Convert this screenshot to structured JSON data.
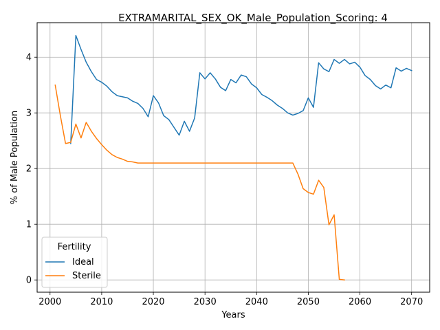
{
  "chart_data": {
    "type": "line",
    "title": "EXTRAMARITAL_SEX_OK_Male_Population_Scoring: 4",
    "xlabel": "Years",
    "ylabel": "% of Male Population",
    "xlim": [
      1997.5,
      2073.5
    ],
    "ylim": [
      -0.22,
      4.62
    ],
    "xticks": [
      2000,
      2010,
      2020,
      2030,
      2040,
      2050,
      2060,
      2070
    ],
    "yticks": [
      0,
      1,
      2,
      3,
      4
    ],
    "grid": true,
    "legend": {
      "title": "Fertility",
      "placement": "lower-left"
    },
    "series": [
      {
        "name": "Ideal",
        "color": "#1f77b4",
        "points": [
          [
            2004,
            2.45
          ],
          [
            2005,
            4.39
          ],
          [
            2006,
            4.14
          ],
          [
            2007,
            3.91
          ],
          [
            2008,
            3.74
          ],
          [
            2009,
            3.6
          ],
          [
            2010,
            3.55
          ],
          [
            2011,
            3.48
          ],
          [
            2012,
            3.38
          ],
          [
            2013,
            3.31
          ],
          [
            2014,
            3.29
          ],
          [
            2015,
            3.27
          ],
          [
            2016,
            3.21
          ],
          [
            2017,
            3.17
          ],
          [
            2018,
            3.08
          ],
          [
            2019,
            2.93
          ],
          [
            2020,
            3.31
          ],
          [
            2021,
            3.18
          ],
          [
            2022,
            2.95
          ],
          [
            2023,
            2.88
          ],
          [
            2024,
            2.74
          ],
          [
            2025,
            2.6
          ],
          [
            2026,
            2.85
          ],
          [
            2027,
            2.67
          ],
          [
            2028,
            2.91
          ],
          [
            2029,
            3.72
          ],
          [
            2030,
            3.61
          ],
          [
            2031,
            3.72
          ],
          [
            2032,
            3.61
          ],
          [
            2033,
            3.46
          ],
          [
            2034,
            3.4
          ],
          [
            2035,
            3.6
          ],
          [
            2036,
            3.54
          ],
          [
            2037,
            3.68
          ],
          [
            2038,
            3.65
          ],
          [
            2039,
            3.52
          ],
          [
            2040,
            3.45
          ],
          [
            2041,
            3.33
          ],
          [
            2042,
            3.28
          ],
          [
            2043,
            3.22
          ],
          [
            2044,
            3.14
          ],
          [
            2045,
            3.08
          ],
          [
            2046,
            3.0
          ],
          [
            2047,
            2.96
          ],
          [
            2048,
            2.99
          ],
          [
            2049,
            3.04
          ],
          [
            2050,
            3.27
          ],
          [
            2051,
            3.1
          ],
          [
            2052,
            3.9
          ],
          [
            2053,
            3.79
          ],
          [
            2054,
            3.74
          ],
          [
            2055,
            3.96
          ],
          [
            2056,
            3.89
          ],
          [
            2057,
            3.96
          ],
          [
            2058,
            3.88
          ],
          [
            2059,
            3.91
          ],
          [
            2060,
            3.82
          ],
          [
            2061,
            3.67
          ],
          [
            2062,
            3.6
          ],
          [
            2063,
            3.49
          ],
          [
            2064,
            3.43
          ],
          [
            2065,
            3.5
          ],
          [
            2066,
            3.45
          ],
          [
            2067,
            3.81
          ],
          [
            2068,
            3.75
          ],
          [
            2069,
            3.8
          ],
          [
            2070,
            3.76
          ]
        ]
      },
      {
        "name": "Sterile",
        "color": "#ff7f0e",
        "points": [
          [
            2001,
            3.5
          ],
          [
            2002,
            2.95
          ],
          [
            2003,
            2.45
          ],
          [
            2004,
            2.47
          ],
          [
            2005,
            2.8
          ],
          [
            2006,
            2.55
          ],
          [
            2007,
            2.83
          ],
          [
            2008,
            2.67
          ],
          [
            2009,
            2.54
          ],
          [
            2010,
            2.43
          ],
          [
            2011,
            2.33
          ],
          [
            2012,
            2.25
          ],
          [
            2013,
            2.2
          ],
          [
            2014,
            2.17
          ],
          [
            2015,
            2.13
          ],
          [
            2016,
            2.12
          ],
          [
            2017,
            2.1
          ],
          [
            2018,
            2.1
          ],
          [
            2019,
            2.1
          ],
          [
            2020,
            2.1
          ],
          [
            2025,
            2.1
          ],
          [
            2030,
            2.1
          ],
          [
            2035,
            2.1
          ],
          [
            2040,
            2.1
          ],
          [
            2045,
            2.1
          ],
          [
            2047,
            2.1
          ],
          [
            2048,
            1.9
          ],
          [
            2049,
            1.64
          ],
          [
            2050,
            1.57
          ],
          [
            2051,
            1.54
          ],
          [
            2052,
            1.79
          ],
          [
            2053,
            1.66
          ],
          [
            2054,
            0.99
          ],
          [
            2055,
            1.17
          ],
          [
            2056,
            0.01
          ],
          [
            2057,
            0.0
          ]
        ]
      }
    ]
  }
}
